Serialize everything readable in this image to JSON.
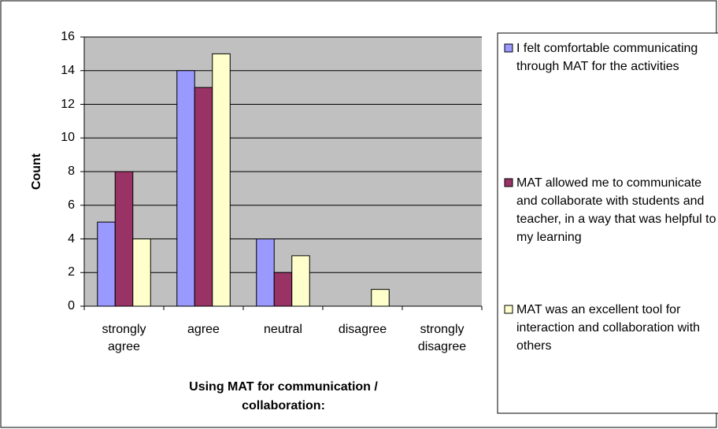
{
  "chart_data": {
    "type": "bar",
    "x_label": "Using MAT for communication / collaboration:",
    "y_label": "Count",
    "categories": [
      "strongly agree",
      "agree",
      "neutral",
      "disagree",
      "strongly disagree"
    ],
    "series": [
      {
        "name": "I felt comfortable communicating through MAT for the activities",
        "color": "#9999ff",
        "values": [
          5,
          14,
          4,
          0,
          0
        ]
      },
      {
        "name": "MAT allowed me to communicate and collaborate with students and teacher, in a way that was helpful to my learning",
        "color": "#993366",
        "values": [
          8,
          13,
          2,
          0,
          0
        ]
      },
      {
        "name": "MAT was an excellent tool for interaction and collaboration with others",
        "color": "#ffffcc",
        "values": [
          4,
          15,
          3,
          1,
          0
        ]
      }
    ],
    "ylim": [
      0,
      16
    ],
    "yticks": [
      0,
      2,
      4,
      6,
      8,
      10,
      12,
      14,
      16
    ],
    "grid": true,
    "legend": "right"
  }
}
